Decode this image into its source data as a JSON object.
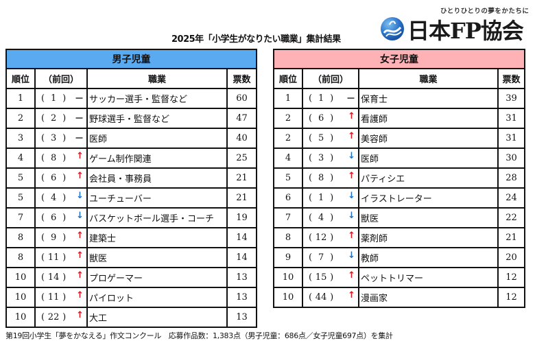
{
  "title": "2025年「小学生がなりたい職業」集計結果",
  "logo": {
    "tagline": "ひとりひとりの夢をかたちに",
    "name": "日本FP協会",
    "icon": "fp-swirl-logo-icon",
    "colors": {
      "primary": "#1b5fb8",
      "light": "#6fb0e8"
    }
  },
  "colors": {
    "boys_header": "#5aaaf2",
    "girls_header": "#ffb2b6",
    "trend_up": "#e0141e",
    "trend_down": "#1b6fc4"
  },
  "columns": {
    "rank": "順位",
    "prev": "（前回）",
    "job": "職業",
    "votes": "票数"
  },
  "boys": {
    "header": "男子児童",
    "rows": [
      {
        "rank": "1",
        "prev": "1",
        "trend": "same",
        "trend_icon": "－",
        "job": "サッカー選手・監督など",
        "votes": "60"
      },
      {
        "rank": "2",
        "prev": "2",
        "trend": "same",
        "trend_icon": "－",
        "job": "野球選手・監督など",
        "votes": "47"
      },
      {
        "rank": "3",
        "prev": "3",
        "trend": "same",
        "trend_icon": "－",
        "job": "医師",
        "votes": "40"
      },
      {
        "rank": "4",
        "prev": "8",
        "trend": "up",
        "trend_icon": "↑",
        "job": "ゲーム制作関連",
        "votes": "25"
      },
      {
        "rank": "5",
        "prev": "6",
        "trend": "up",
        "trend_icon": "↑",
        "job": "会社員・事務員",
        "votes": "21"
      },
      {
        "rank": "5",
        "prev": "4",
        "trend": "down",
        "trend_icon": "↓",
        "job": "ユーチューバー",
        "votes": "21"
      },
      {
        "rank": "7",
        "prev": "6",
        "trend": "down",
        "trend_icon": "↓",
        "job": "バスケットボール選手・コーチ",
        "votes": "19"
      },
      {
        "rank": "8",
        "prev": "9",
        "trend": "up",
        "trend_icon": "↑",
        "job": "建築士",
        "votes": "14"
      },
      {
        "rank": "8",
        "prev": "11",
        "trend": "up",
        "trend_icon": "↑",
        "job": "獣医",
        "votes": "14"
      },
      {
        "rank": "10",
        "prev": "14",
        "trend": "up",
        "trend_icon": "↑",
        "job": "プロゲーマー",
        "votes": "13"
      },
      {
        "rank": "10",
        "prev": "11",
        "trend": "up",
        "trend_icon": "↑",
        "job": "パイロット",
        "votes": "13"
      },
      {
        "rank": "10",
        "prev": "22",
        "trend": "up",
        "trend_icon": "↑",
        "job": "大工",
        "votes": "13"
      }
    ]
  },
  "girls": {
    "header": "女子児童",
    "rows": [
      {
        "rank": "1",
        "prev": "1",
        "trend": "same",
        "trend_icon": "－",
        "job": "保育士",
        "votes": "39"
      },
      {
        "rank": "2",
        "prev": "6",
        "trend": "up",
        "trend_icon": "↑",
        "job": "看護師",
        "votes": "31"
      },
      {
        "rank": "2",
        "prev": "5",
        "trend": "up",
        "trend_icon": "↑",
        "job": "美容師",
        "votes": "31"
      },
      {
        "rank": "4",
        "prev": "3",
        "trend": "down",
        "trend_icon": "↓",
        "job": "医師",
        "votes": "30"
      },
      {
        "rank": "5",
        "prev": "8",
        "trend": "up",
        "trend_icon": "↑",
        "job": "パティシエ",
        "votes": "28"
      },
      {
        "rank": "6",
        "prev": "1",
        "trend": "down",
        "trend_icon": "↓",
        "job": "イラストレーター",
        "votes": "24"
      },
      {
        "rank": "7",
        "prev": "4",
        "trend": "down",
        "trend_icon": "↓",
        "job": "獣医",
        "votes": "22"
      },
      {
        "rank": "8",
        "prev": "12",
        "trend": "up",
        "trend_icon": "↑",
        "job": "薬剤師",
        "votes": "21"
      },
      {
        "rank": "9",
        "prev": "7",
        "trend": "down",
        "trend_icon": "↓",
        "job": "教師",
        "votes": "20"
      },
      {
        "rank": "10",
        "prev": "15",
        "trend": "up",
        "trend_icon": "↑",
        "job": "ペットトリマー",
        "votes": "12"
      },
      {
        "rank": "10",
        "prev": "44",
        "trend": "up",
        "trend_icon": "↑",
        "job": "漫画家",
        "votes": "12"
      }
    ]
  },
  "footer": "第19回小学生「夢をかなえる」作文コンクール　応募作品数：1,383点（男子児童：686点／女子児童697点）を集計"
}
